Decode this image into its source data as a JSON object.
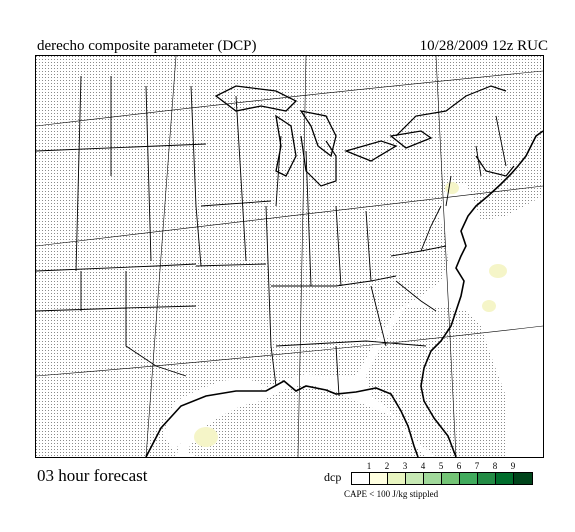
{
  "header": {
    "title": "derecho composite parameter (DCP)",
    "datestamp": "10/28/2009  12z  RUC"
  },
  "footer": {
    "forecast_label": "03 hour forecast"
  },
  "legend": {
    "label": "dcp",
    "ticks": [
      "1",
      "2",
      "3",
      "4",
      "5",
      "6",
      "7",
      "8",
      "9"
    ],
    "colors": [
      "#ffffff",
      "#ffffe0",
      "#e8f5c0",
      "#c7e9b4",
      "#a1d99b",
      "#74c476",
      "#41ab5d",
      "#238b45",
      "#006d2c",
      "#00441b"
    ],
    "note": "CAPE < 100 J/kg stippled"
  },
  "map": {
    "stipple_color": "#9a9a9a",
    "low_dcp_color": "#f5f5c8"
  }
}
